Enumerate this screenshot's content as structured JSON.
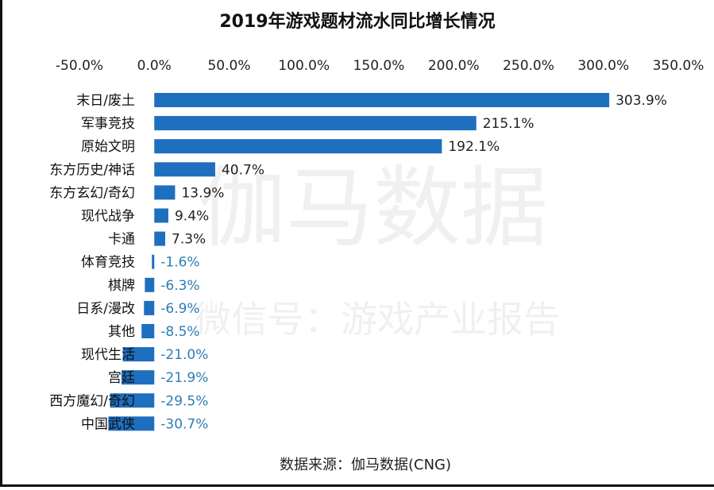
{
  "chart_data": {
    "type": "bar",
    "orientation": "horizontal",
    "title": "2019年游戏题材流水同比增长情况",
    "categories": [
      "末日/废土",
      "军事竞技",
      "原始文明",
      "东方历史/神话",
      "东方玄幻/奇幻",
      "现代战争",
      "卡通",
      "体育竞技",
      "棋牌",
      "日系/漫改",
      "其他",
      "现代生活",
      "宫廷",
      "西方魔幻/奇幻",
      "中国武侠"
    ],
    "values": [
      303.9,
      215.1,
      192.1,
      40.7,
      13.9,
      9.4,
      7.3,
      -1.6,
      -6.3,
      -6.9,
      -8.5,
      -21.0,
      -21.9,
      -29.5,
      -30.7
    ],
    "value_labels": [
      "303.9%",
      "215.1%",
      "192.1%",
      "40.7%",
      "13.9%",
      "9.4%",
      "7.3%",
      "-1.6%",
      "-6.3%",
      "-6.9%",
      "-8.5%",
      "-21.0%",
      "-21.9%",
      "-29.5%",
      "-30.7%"
    ],
    "xlim": [
      -50,
      350
    ],
    "xticks": [
      -50,
      0,
      50,
      100,
      150,
      200,
      250,
      300,
      350
    ],
    "xtick_labels": [
      "-50.0%",
      "0.0%",
      "50.0%",
      "100.0%",
      "150.0%",
      "200.0%",
      "250.0%",
      "300.0%",
      "350.0%"
    ],
    "xaxis_position": "top",
    "grid": false,
    "bar_color": "#1f6fbf",
    "positive_label_color": "#222222",
    "negative_label_color": "#2e7db3",
    "watermark_main": "伽马数据",
    "watermark_sub": "微信号：游戏产业报告",
    "source": "数据来源：伽马数据(CNG)"
  }
}
